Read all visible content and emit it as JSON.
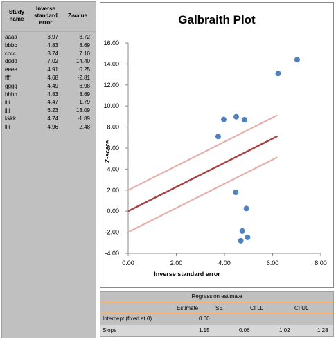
{
  "table": {
    "headers": {
      "study_name": [
        "Study",
        "name"
      ],
      "inverse_se": [
        "Inverse",
        "standard",
        "error"
      ],
      "z_value": [
        "Z-value"
      ]
    },
    "rows": [
      {
        "name": "aaaa",
        "ise": "3.97",
        "z": "8.72"
      },
      {
        "name": "bbbb",
        "ise": "4.83",
        "z": "8.69"
      },
      {
        "name": "cccc",
        "ise": "3.74",
        "z": "7.10"
      },
      {
        "name": "dddd",
        "ise": "7.02",
        "z": "14.40"
      },
      {
        "name": "eeee",
        "ise": "4.91",
        "z": "0.25"
      },
      {
        "name": "ffff",
        "ise": "4.68",
        "z": "-2.81"
      },
      {
        "name": "gggg",
        "ise": "4.49",
        "z": "8.98"
      },
      {
        "name": "hhhh",
        "ise": "4.83",
        "z": "8.69"
      },
      {
        "name": "iiii",
        "ise": "4.47",
        "z": "1.79"
      },
      {
        "name": "jjjj",
        "ise": "6.23",
        "z": "13.09"
      },
      {
        "name": "kkkk",
        "ise": "4.74",
        "z": "-1.89"
      },
      {
        "name": "llll",
        "ise": "4.96",
        "z": "-2.48"
      }
    ]
  },
  "chart_data": {
    "type": "scatter",
    "title": "Galbraith Plot",
    "xlabel": "Inverse standard error",
    "ylabel": "Z-score",
    "xlim": [
      0,
      8
    ],
    "ylim": [
      -4,
      16
    ],
    "xticks": [
      "0.00",
      "2.00",
      "4.00",
      "6.00",
      "8.00"
    ],
    "yticks": [
      "16.00",
      "14.00",
      "12.00",
      "10.00",
      "8.00",
      "6.00",
      "4.00",
      "2.00",
      "0.00",
      "-2.00",
      "-4.00"
    ],
    "points": {
      "x": [
        3.97,
        4.83,
        3.74,
        7.02,
        4.91,
        4.68,
        4.49,
        4.83,
        4.47,
        6.23,
        4.74,
        4.96
      ],
      "y": [
        8.72,
        8.69,
        7.1,
        14.4,
        0.25,
        -2.81,
        8.98,
        8.69,
        1.79,
        13.09,
        -1.89,
        -2.48
      ]
    },
    "regression_line": {
      "intercept": 0,
      "slope": 1.15
    },
    "confidence_lines": [
      {
        "intercept": 2,
        "slope": 1.15
      },
      {
        "intercept": -2,
        "slope": 1.15
      }
    ],
    "colors": {
      "points": "#4f81bd",
      "regression": "#a94040",
      "confidence": "#e6b0aa"
    }
  },
  "regression": {
    "title": "Regression estimate",
    "headers": {
      "estimate": "Estimate",
      "se": "SE",
      "ci_ll": "CI LL",
      "ci_ul": "CI UL"
    },
    "rows": [
      {
        "label": "Intercept (fixed at 0)",
        "estimate": "0.00",
        "se": "",
        "ci_ll": "",
        "ci_ul": ""
      },
      {
        "label": "Slope",
        "estimate": "1.15",
        "se": "0.06",
        "ci_ll": "1.02",
        "ci_ul": "1.28"
      }
    ]
  }
}
